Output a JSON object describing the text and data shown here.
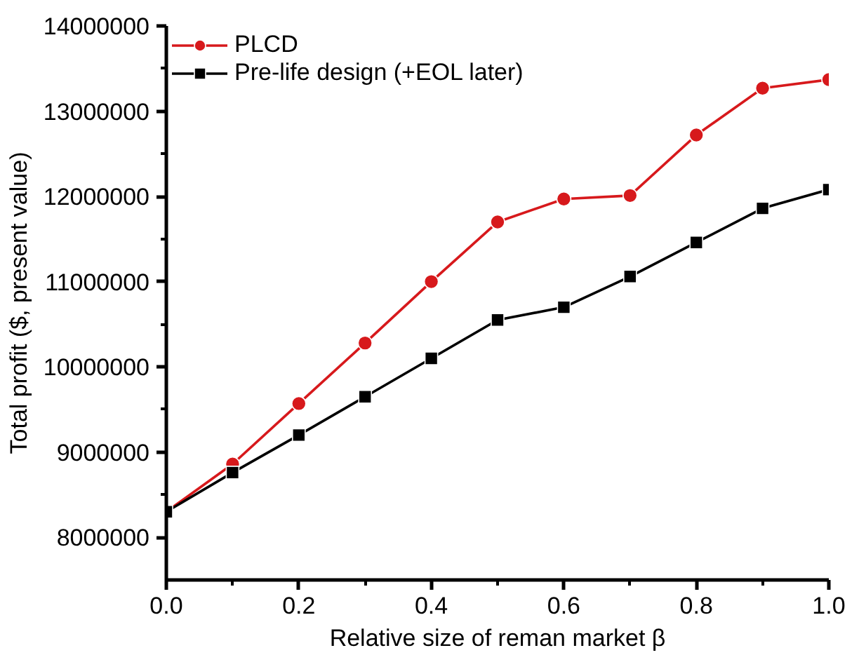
{
  "chart_data": {
    "type": "line",
    "xlabel": "Relative size of reman market β",
    "ylabel": "Total profit ($, present value)",
    "x": [
      0,
      0.1,
      0.2,
      0.3,
      0.4,
      0.5,
      0.6,
      0.7,
      0.8,
      0.9,
      1.0
    ],
    "series": [
      {
        "name": "PLCD",
        "color": "#d7191c",
        "marker": "circle",
        "values": [
          8300000,
          8860000,
          9570000,
          10280000,
          11000000,
          11700000,
          11970000,
          12010000,
          12720000,
          13270000,
          13370000
        ]
      },
      {
        "name": "Pre-life design (+EOL later)",
        "color": "#000000",
        "marker": "square",
        "values": [
          8300000,
          8760000,
          9200000,
          9650000,
          10100000,
          10550000,
          10700000,
          11060000,
          11460000,
          11860000,
          12080000
        ]
      }
    ],
    "xlim": [
      0,
      1.0
    ],
    "xticks": [
      {
        "value": 0,
        "label": "0.0"
      },
      0.2,
      0.4,
      0.6,
      0.8,
      {
        "value": 1,
        "label": "1.0"
      }
    ],
    "ylim": [
      7500000,
      14000000
    ],
    "yticks": [
      8000000,
      9000000,
      10000000,
      11000000,
      12000000,
      13000000,
      14000000
    ],
    "grid": false,
    "legend": "top left",
    "line_style": "solid"
  }
}
